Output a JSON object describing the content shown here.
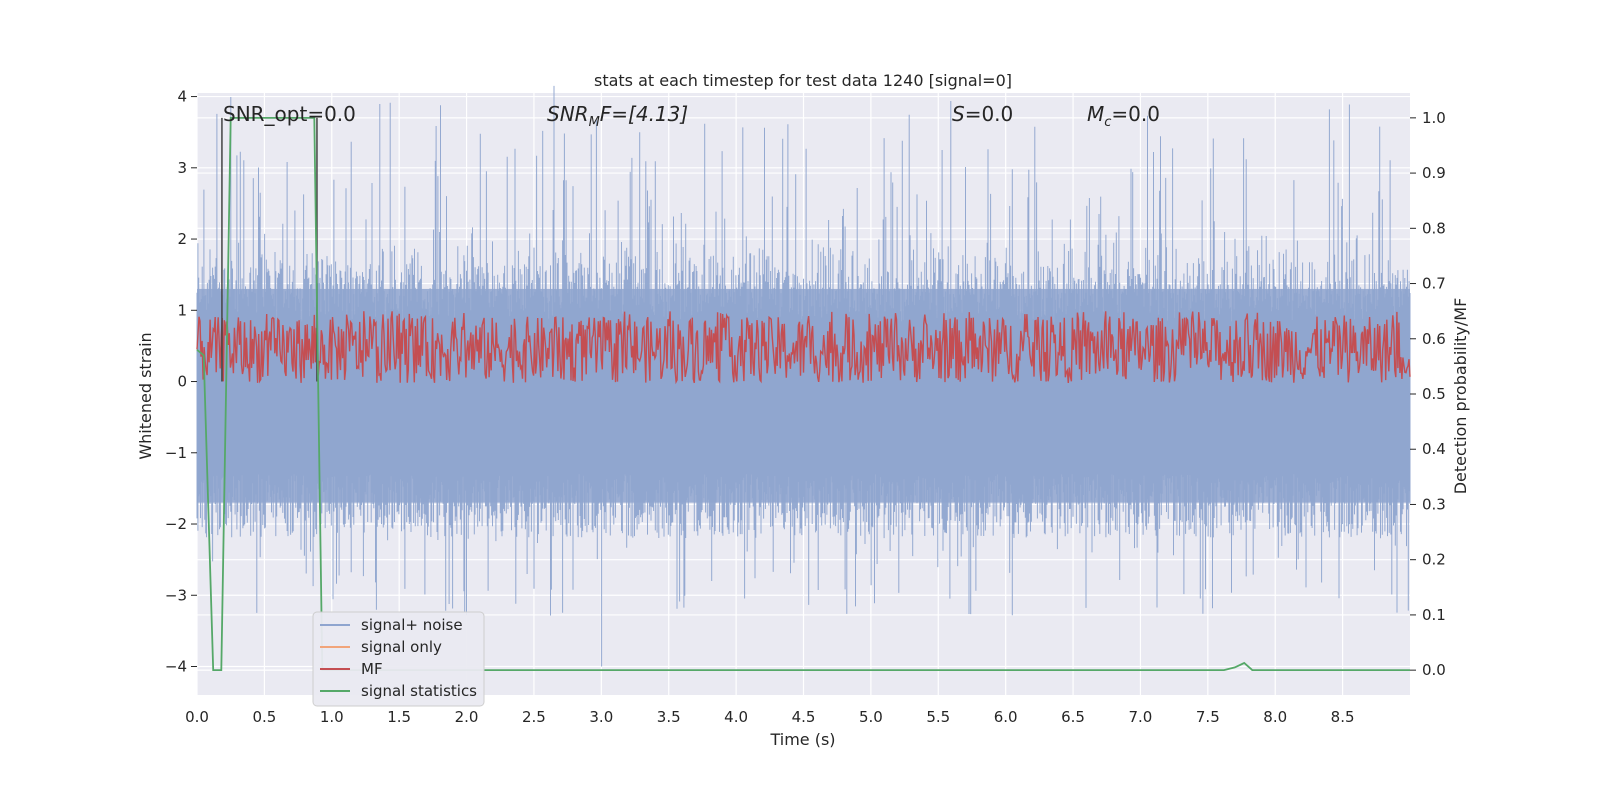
{
  "chart_data": {
    "type": "line",
    "title": "stats at each timestep for test data 1240 [signal=0]",
    "xlabel": "Time (s)",
    "ylabel": "Whitened strain",
    "y2label": "Detection probability/MF",
    "xlim": [
      0.0,
      9.0
    ],
    "ylim": [
      -4.4,
      4.05
    ],
    "y2lim": [
      -0.045,
      1.045
    ],
    "grid": true,
    "legend_position": "lower-left",
    "xticks": [
      "0.0",
      "0.5",
      "1.0",
      "1.5",
      "2.0",
      "2.5",
      "3.0",
      "3.5",
      "4.0",
      "4.5",
      "5.0",
      "5.5",
      "6.0",
      "6.5",
      "7.0",
      "7.5",
      "8.0",
      "8.5"
    ],
    "yticks": [
      "4",
      "3",
      "2",
      "1",
      "0",
      "−1",
      "−2",
      "−3",
      "−4"
    ],
    "y2ticks": [
      "1.0",
      "0.9",
      "0.8",
      "0.7",
      "0.6",
      "0.5",
      "0.4",
      "0.3",
      "0.2",
      "0.1",
      "0.0"
    ],
    "annotations": {
      "snr_opt": "SNR_opt=0.0",
      "snr_mf_main": "SNR",
      "snr_mf_sub": "M",
      "snr_mf_tail": "F=[4.13]",
      "s_var": "S",
      "s_val": "=0.0",
      "mc_var": "M",
      "mc_sub": "c",
      "mc_val": "=0.0"
    },
    "series": [
      {
        "name": "signal+ noise",
        "color": "#8fa5cf",
        "amplitude_typical": 1.35,
        "amplitude_peak": 3.6,
        "note_min": -4.0
      },
      {
        "name": "signal only",
        "color": "#f1a47a",
        "values": [
          0
        ]
      },
      {
        "name": "MF",
        "color": "#c44e52",
        "y2_range": [
          0.52,
          0.64
        ]
      },
      {
        "name": "signal statistics",
        "color": "#55a868",
        "axis": "y2",
        "x": [
          0.0,
          0.05,
          0.12,
          0.18,
          0.25,
          0.87,
          0.93,
          1.0,
          7.62,
          7.7,
          7.77,
          7.83,
          9.0
        ],
        "values": [
          0.58,
          0.57,
          0.0,
          0.0,
          1.0,
          1.0,
          0.0,
          0.0,
          0.0,
          0.005,
          0.013,
          0.0,
          0.0
        ]
      }
    ],
    "vertical_markers": [
      {
        "color": "#444444",
        "x": 0.185
      },
      {
        "color": "#444444",
        "x": 0.89
      }
    ]
  }
}
